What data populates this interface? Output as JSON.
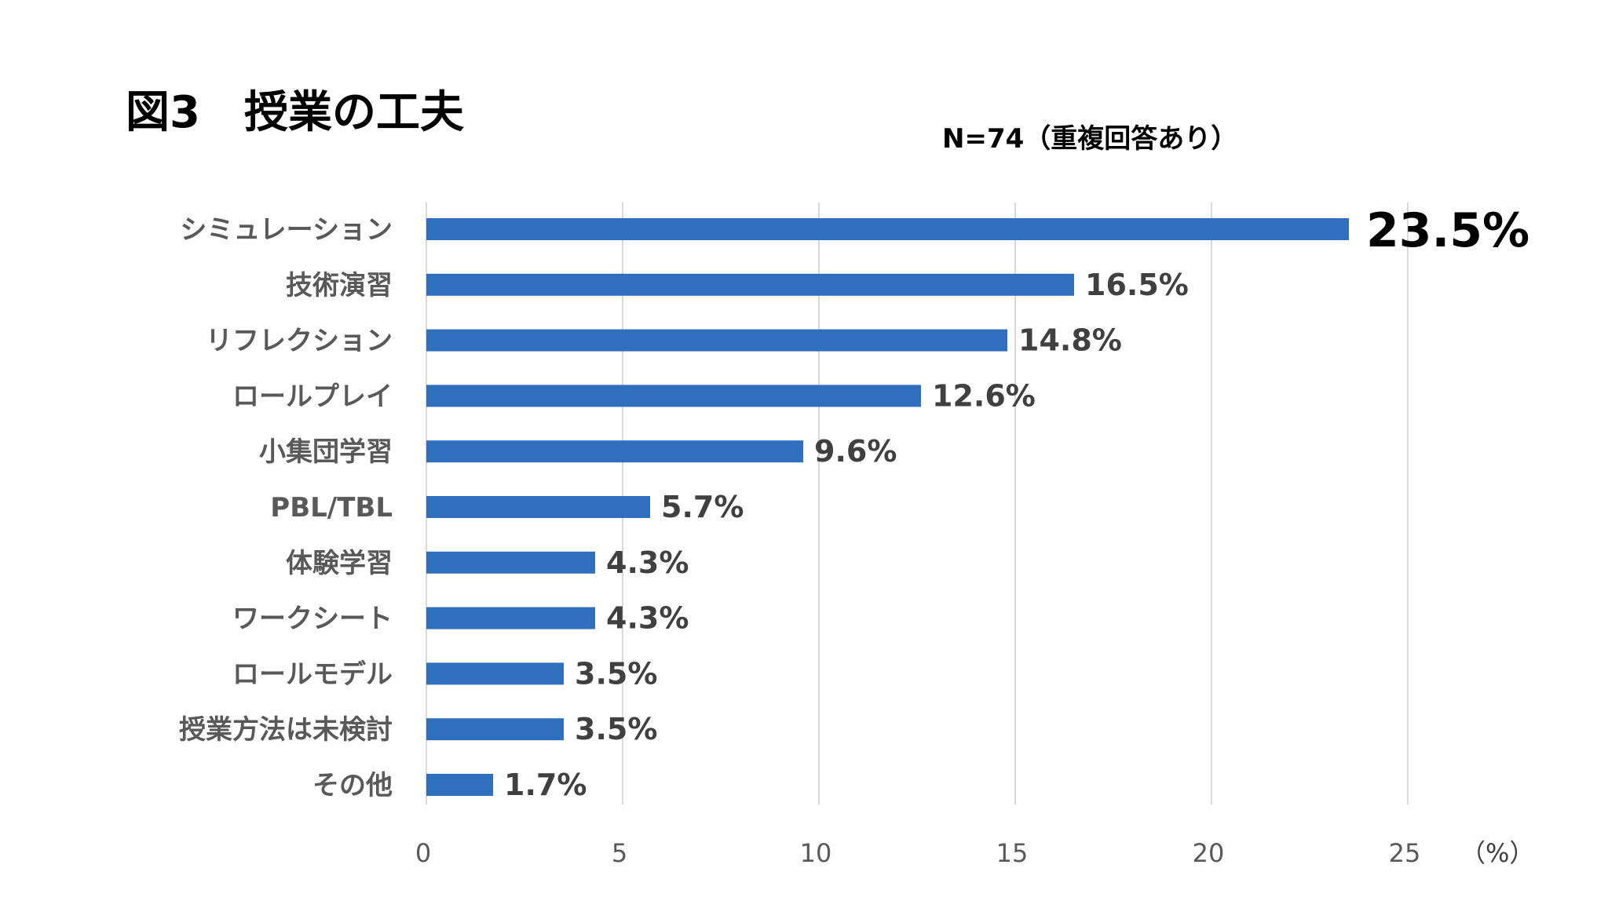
{
  "chart_data": {
    "type": "bar",
    "orientation": "horizontal",
    "title": "図3　授業の工夫",
    "subtitle": "N=74（重複回答あり）",
    "categories": [
      "シミュレーション",
      "技術演習",
      "リフレクション",
      "ロールプレイ",
      "小集団学習",
      "PBL/TBL",
      "体験学習",
      "ワークシート",
      "ロールモデル",
      "授業方法は未検討",
      "その他"
    ],
    "values": [
      23.5,
      16.5,
      14.8,
      12.6,
      9.6,
      5.7,
      4.3,
      4.3,
      3.5,
      3.5,
      1.7
    ],
    "value_labels": [
      "23.5%",
      "16.5%",
      "14.8%",
      "12.6%",
      "9.6%",
      "5.7%",
      "4.3%",
      "4.3%",
      "3.5%",
      "3.5%",
      "1.7%"
    ],
    "xticks": [
      0,
      5,
      10,
      15,
      20,
      25
    ],
    "xtick_labels": [
      "0",
      "5",
      "10",
      "15",
      "20",
      "25"
    ],
    "xlim": [
      0,
      25
    ],
    "x_unit": "（%）",
    "grid": "vertical",
    "bar_color": "#2f6fbd"
  }
}
